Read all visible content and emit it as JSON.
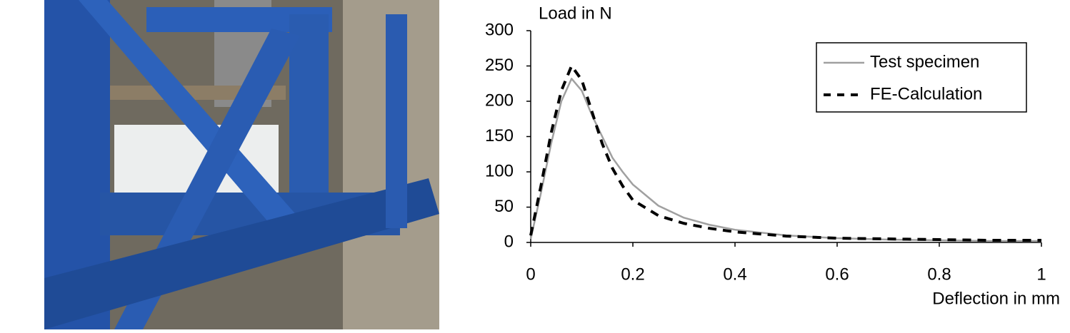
{
  "chart_data": {
    "type": "line",
    "y_label": "Load in N",
    "x_label": "Deflection in mm",
    "x": [
      0,
      0.02,
      0.04,
      0.06,
      0.08,
      0.1,
      0.12,
      0.14,
      0.16,
      0.18,
      0.2,
      0.25,
      0.3,
      0.35,
      0.4,
      0.5,
      0.6,
      0.7,
      0.8,
      0.9,
      1.0
    ],
    "series": [
      {
        "name": "Test specimen",
        "color": "#a0a0a0",
        "dashed": false,
        "values": [
          5,
          70,
          140,
          200,
          232,
          215,
          180,
          150,
          120,
          100,
          82,
          52,
          35,
          25,
          18,
          10,
          6,
          4,
          3,
          2,
          2
        ]
      },
      {
        "name": "FE-Calculation",
        "color": "#000000",
        "dashed": true,
        "values": [
          10,
          80,
          155,
          215,
          250,
          230,
          185,
          140,
          105,
          80,
          60,
          38,
          27,
          20,
          15,
          9,
          6,
          5,
          4,
          3,
          3
        ]
      }
    ],
    "xlim": [
      0,
      1
    ],
    "xticks": [
      0,
      0.2,
      0.4,
      0.6,
      0.8,
      1
    ],
    "ylim": [
      0,
      300
    ],
    "yticks": [
      0,
      50,
      100,
      150,
      200,
      250,
      300
    ],
    "grid": false,
    "legend": "top-right"
  }
}
